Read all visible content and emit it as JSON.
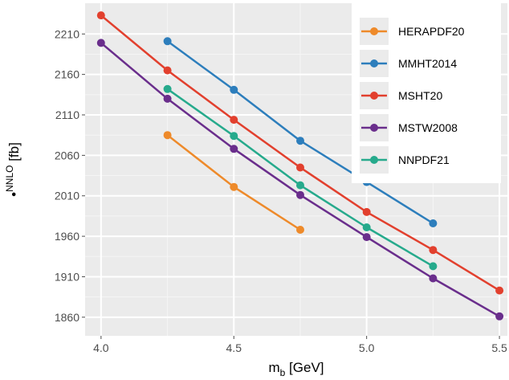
{
  "chart_data": {
    "type": "line",
    "x": [
      4.0,
      4.25,
      4.5,
      4.75,
      5.0,
      5.25,
      5.5
    ],
    "xlim": [
      3.94,
      5.53
    ],
    "ylim": [
      1837,
      2248
    ],
    "xticks": [
      4.0,
      4.5,
      5.0,
      5.5
    ],
    "xtick_labels": [
      "4.0",
      "4.5",
      "5.0",
      "5.5"
    ],
    "yticks": [
      1860,
      1910,
      1960,
      2010,
      2060,
      2110,
      2160,
      2210
    ],
    "ytick_labels": [
      "1860",
      "1910",
      "1960",
      "2010",
      "2060",
      "2110",
      "2160",
      "2210"
    ],
    "xlabel_main": "m",
    "xlabel_sub": "b",
    "xlabel_rest": " [GeV]",
    "ylabel_bullet": "•",
    "ylabel_super": "NNLO",
    "ylabel_rest": " [fb]",
    "grid": true,
    "legend_position": "top-right",
    "series": [
      {
        "name": "HERAPDF20",
        "color": "#ee8a2a",
        "values": [
          null,
          2085,
          2021,
          1968,
          null,
          null,
          null
        ]
      },
      {
        "name": "MMHT2014",
        "color": "#2d7ebc",
        "values": [
          null,
          2201,
          2141,
          2078,
          2027,
          1976,
          null
        ]
      },
      {
        "name": "MSHT20",
        "color": "#e2402e",
        "values": [
          2233,
          2165,
          2104,
          2045,
          1990,
          1943,
          1893
        ]
      },
      {
        "name": "MSTW2008",
        "color": "#6a2e8c",
        "values": [
          2199,
          2130,
          2068,
          2011,
          1959,
          1908,
          1861
        ]
      },
      {
        "name": "NNPDF21",
        "color": "#26aa8c",
        "values": [
          null,
          2142,
          2084,
          2023,
          1971,
          1923,
          null
        ]
      }
    ]
  }
}
